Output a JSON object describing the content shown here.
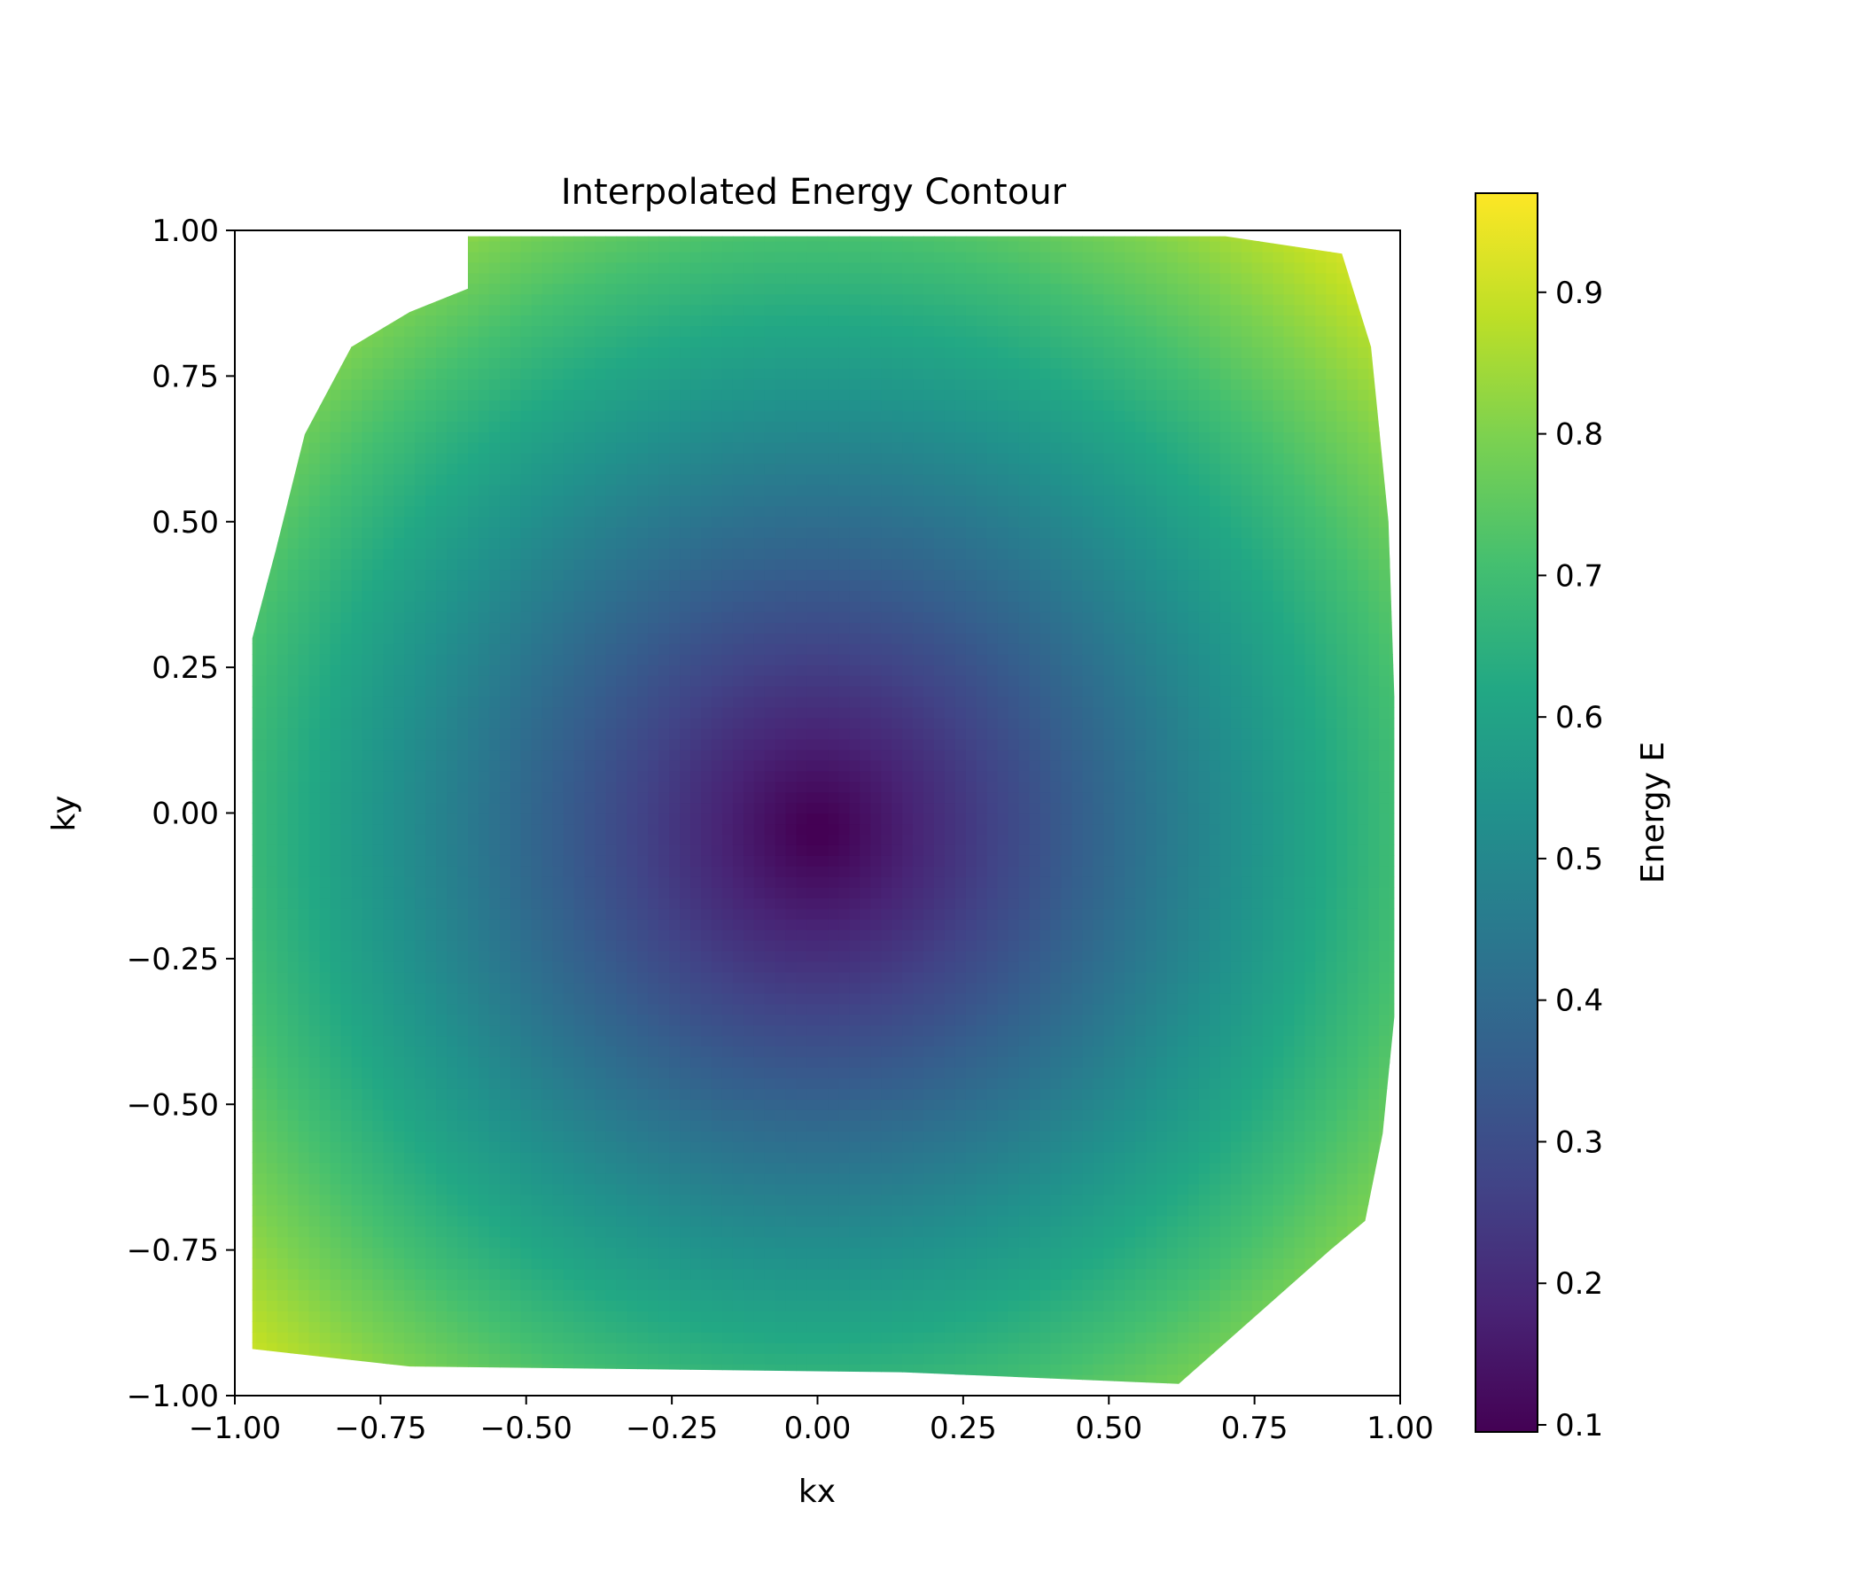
{
  "chart_data": {
    "type": "heatmap",
    "title": "Interpolated Energy Contour",
    "xlabel": "kx",
    "ylabel": "ky",
    "xlim": [
      -1.0,
      1.0
    ],
    "ylim": [
      -1.0,
      1.0
    ],
    "x_ticks": [
      -1.0,
      -0.75,
      -0.5,
      -0.25,
      0.0,
      0.25,
      0.5,
      0.75,
      1.0
    ],
    "x_tick_labels": [
      "−1.00",
      "−0.75",
      "−0.50",
      "−0.25",
      "0.00",
      "0.25",
      "0.50",
      "0.75",
      "1.00"
    ],
    "y_ticks": [
      1.0,
      0.75,
      0.5,
      0.25,
      0.0,
      -0.25,
      -0.5,
      -0.75,
      -1.0
    ],
    "y_tick_labels": [
      "1.00",
      "0.75",
      "0.50",
      "0.25",
      "0.00",
      "−0.25",
      "−0.50",
      "−0.75",
      "−1.00"
    ],
    "colormap": "viridis",
    "colorbar": {
      "label": "Energy E",
      "range": [
        0.095,
        0.97
      ],
      "ticks": [
        0.1,
        0.2,
        0.3,
        0.4,
        0.5,
        0.6,
        0.7,
        0.8,
        0.9
      ],
      "tick_labels": [
        "0.1",
        "0.2",
        "0.3",
        "0.4",
        "0.5",
        "0.6",
        "0.7",
        "0.8",
        "0.9"
      ]
    },
    "field": {
      "description_values": "E ≈ sqrt(kx^2 + ky^2) clipped to data hull",
      "center": [
        0.0,
        -0.03
      ],
      "min_value": 0.095,
      "max_value": 0.97
    },
    "data_hull": [
      [
        -0.6,
        0.99
      ],
      [
        -0.4,
        0.99
      ],
      [
        0.7,
        0.99
      ],
      [
        0.9,
        0.96
      ],
      [
        0.95,
        0.8
      ],
      [
        0.98,
        0.5
      ],
      [
        0.99,
        0.2
      ],
      [
        0.99,
        -0.35
      ],
      [
        0.97,
        -0.55
      ],
      [
        0.94,
        -0.7
      ],
      [
        0.88,
        -0.75
      ],
      [
        0.62,
        -0.98
      ],
      [
        0.15,
        -0.96
      ],
      [
        -0.7,
        -0.95
      ],
      [
        -0.97,
        -0.92
      ],
      [
        -0.97,
        -0.5
      ],
      [
        -0.97,
        0.3
      ],
      [
        -0.93,
        0.45
      ],
      [
        -0.88,
        0.65
      ],
      [
        -0.8,
        0.8
      ],
      [
        -0.7,
        0.86
      ],
      [
        -0.6,
        0.9
      ],
      [
        -0.6,
        0.99
      ]
    ]
  }
}
